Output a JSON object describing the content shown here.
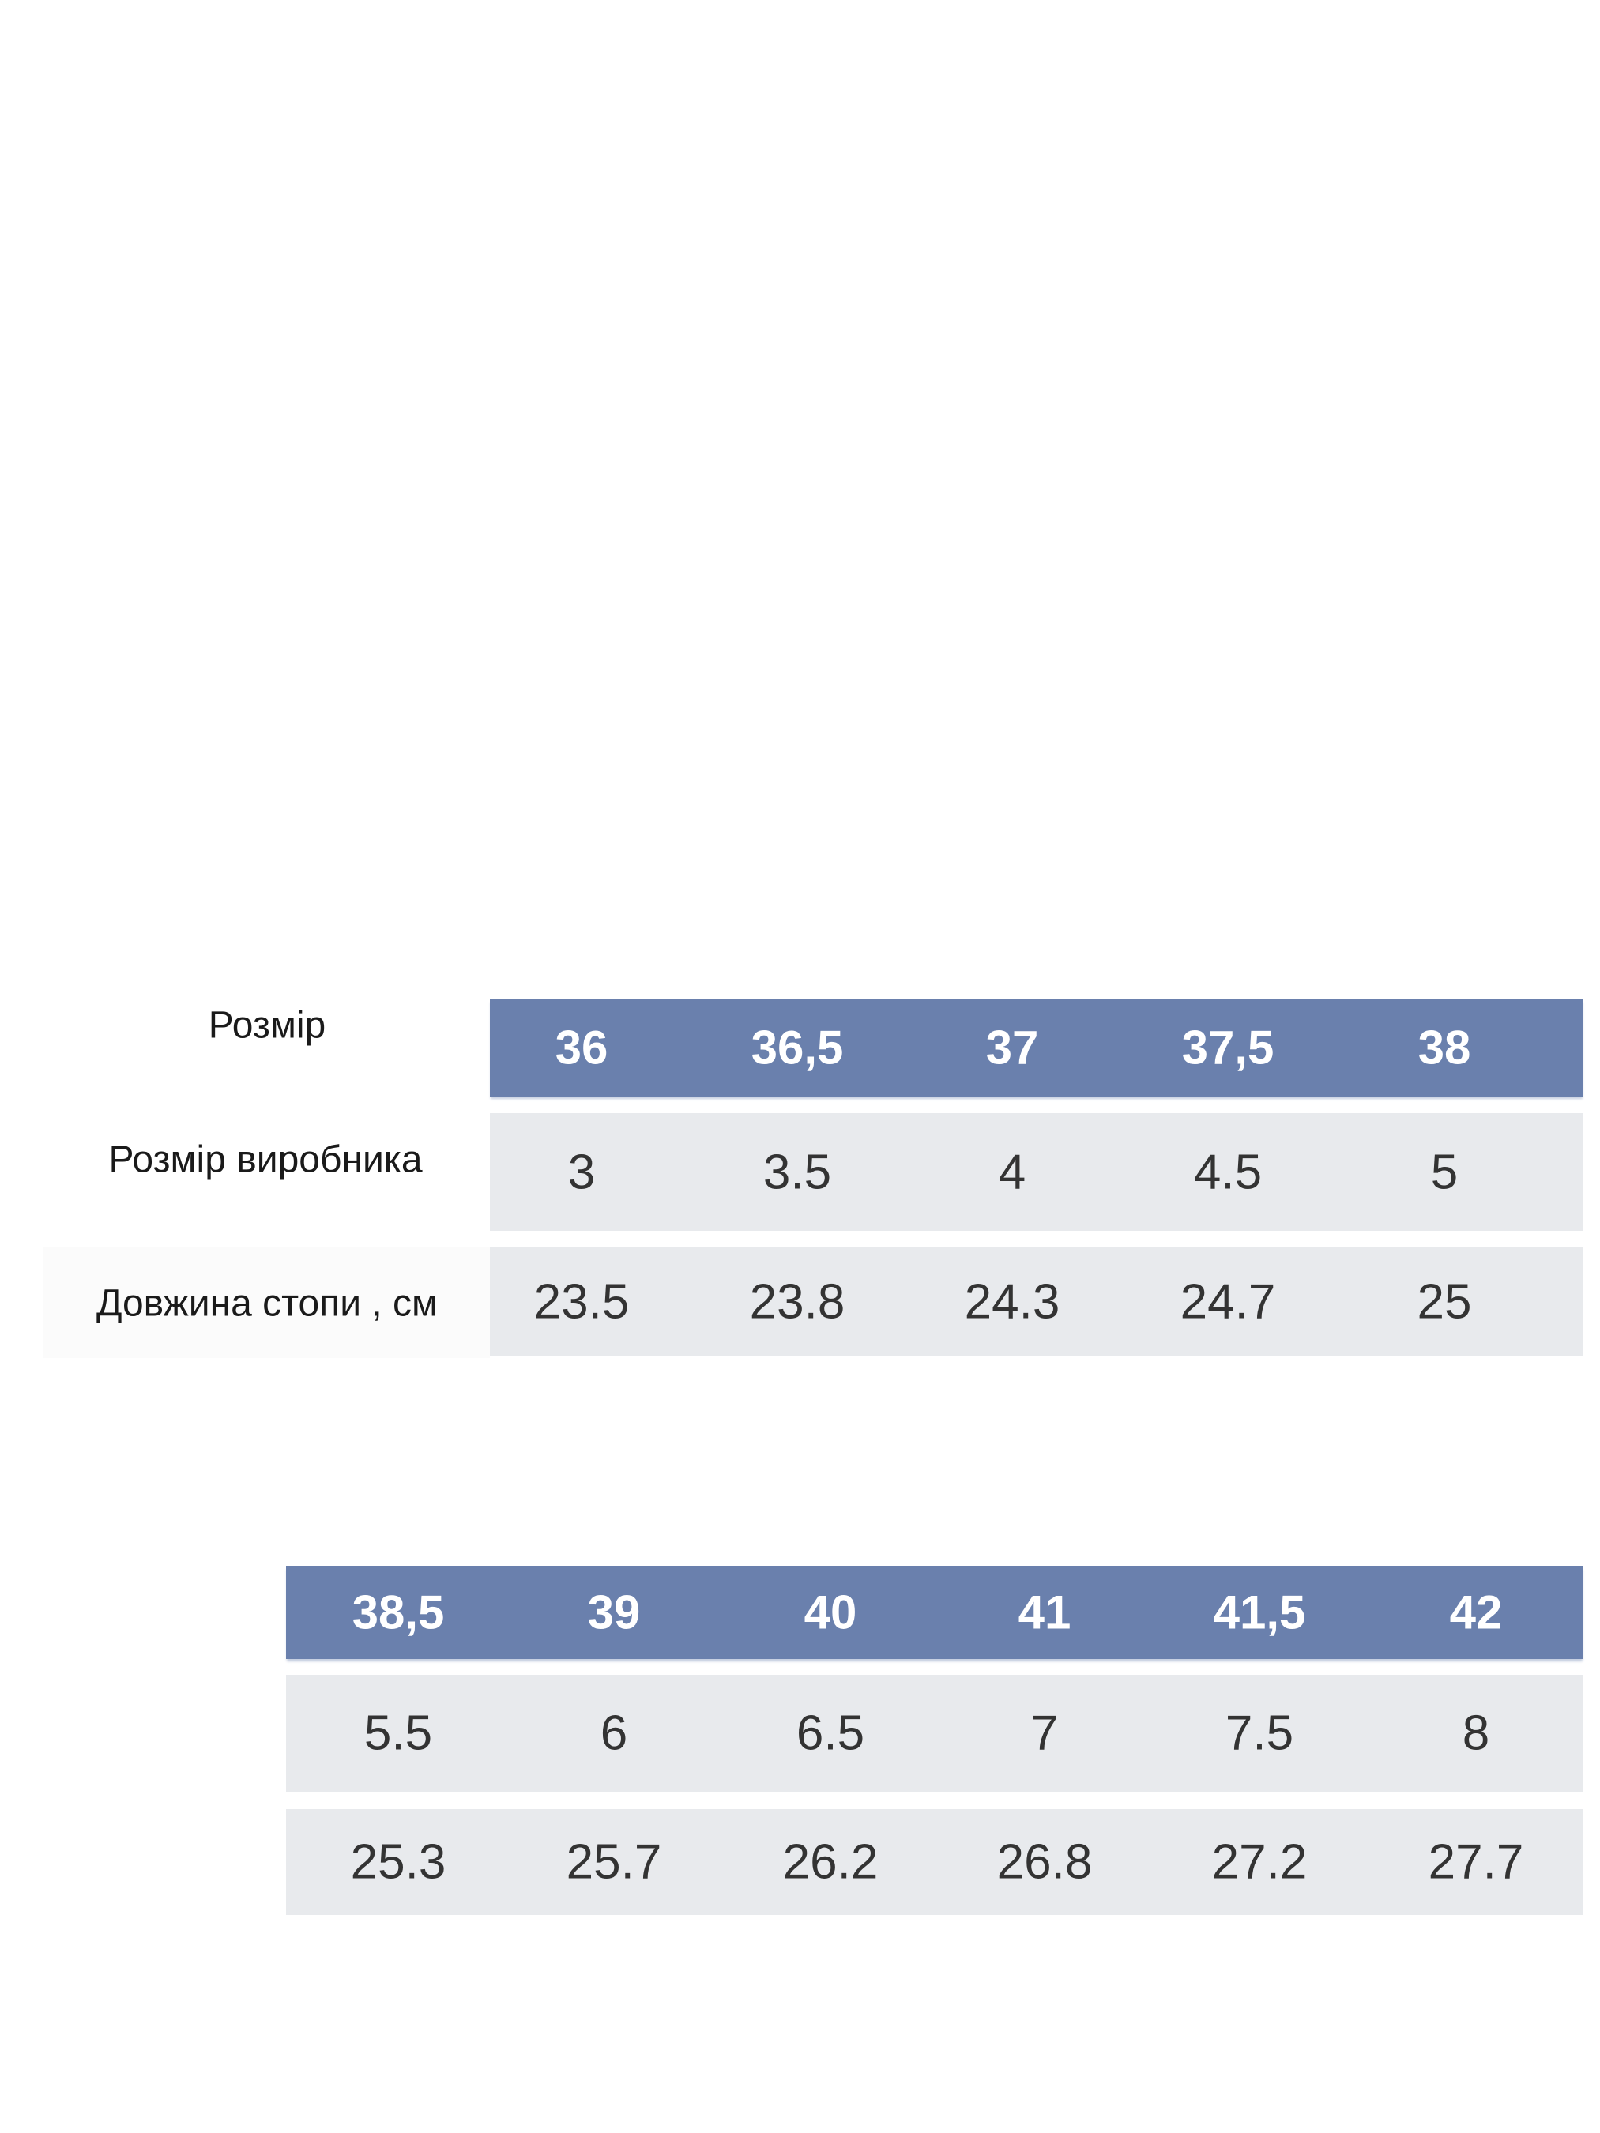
{
  "labels": {
    "size": "Розмір",
    "manufacturer_size": "Розмір виробника",
    "foot_length": "Довжина стопи , см"
  },
  "colors": {
    "header_bg": "#6a80ad",
    "row_bg": "#e8eaed",
    "header_text": "#ffffff"
  },
  "table1": {
    "sizes": [
      "36",
      "36,5",
      "37",
      "37,5",
      "38"
    ],
    "manufacturer": [
      "3",
      "3.5",
      "4",
      "4.5",
      "5"
    ],
    "foot_length_cm": [
      "23.5",
      "23.8",
      "24.3",
      "24.7",
      "25"
    ]
  },
  "table2": {
    "sizes": [
      "38,5",
      "39",
      "40",
      "41",
      "41,5",
      "42"
    ],
    "manufacturer": [
      "5.5",
      "6",
      "6.5",
      "7",
      "7.5",
      "8"
    ],
    "foot_length_cm": [
      "25.3",
      "25.7",
      "26.2",
      "26.8",
      "27.2",
      "27.7"
    ]
  }
}
